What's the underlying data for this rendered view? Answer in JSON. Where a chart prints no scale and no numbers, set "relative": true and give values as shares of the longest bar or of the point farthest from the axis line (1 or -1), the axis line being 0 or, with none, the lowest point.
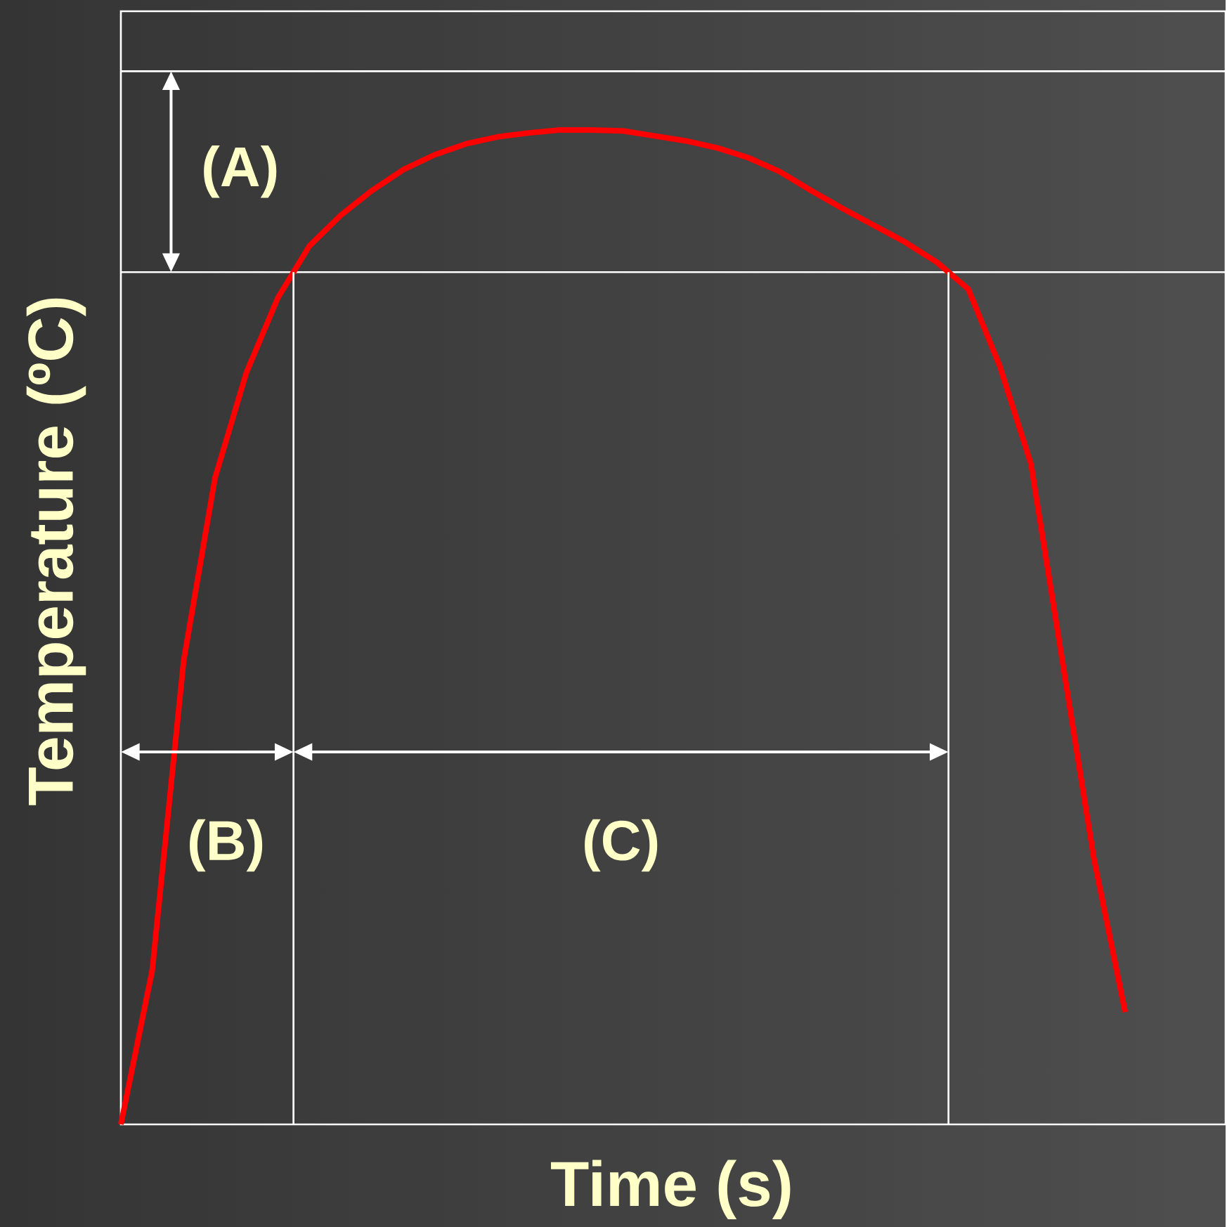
{
  "chart_data": {
    "type": "line",
    "relative": true,
    "xlabel": "Time (s)",
    "ylabel": "Temperature (ºC)",
    "categories": [
      null,
      null,
      null,
      null,
      null,
      null,
      null,
      null,
      null,
      null,
      null,
      null,
      null,
      null,
      null,
      null,
      null,
      null,
      null,
      null,
      null,
      null,
      null,
      null,
      null,
      null,
      null,
      null,
      null,
      null,
      null,
      null,
      null
    ],
    "series": [
      {
        "color": "#ff0000",
        "values": [
          0,
          0.155,
          0.466,
          0.65,
          0.756,
          0.831,
          0.883,
          0.914,
          0.939,
          0.96,
          0.975,
          0.986,
          0.993,
          0.997,
          1,
          1,
          0.999,
          0.994,
          0.989,
          0.982,
          0.972,
          0.958,
          0.939,
          0.921,
          0.904,
          0.887,
          0.867,
          0.84,
          0.763,
          0.664,
          0.466,
          0.268,
          0.113
        ]
      }
    ],
    "ref_lines": [
      {
        "axis": "y",
        "value": 1.059,
        "color": "#ffffff"
      },
      {
        "axis": "y",
        "value": 0.857,
        "color": "#ffffff"
      }
    ],
    "annotations": [
      "(A)",
      "(B)",
      "(C)"
    ]
  }
}
